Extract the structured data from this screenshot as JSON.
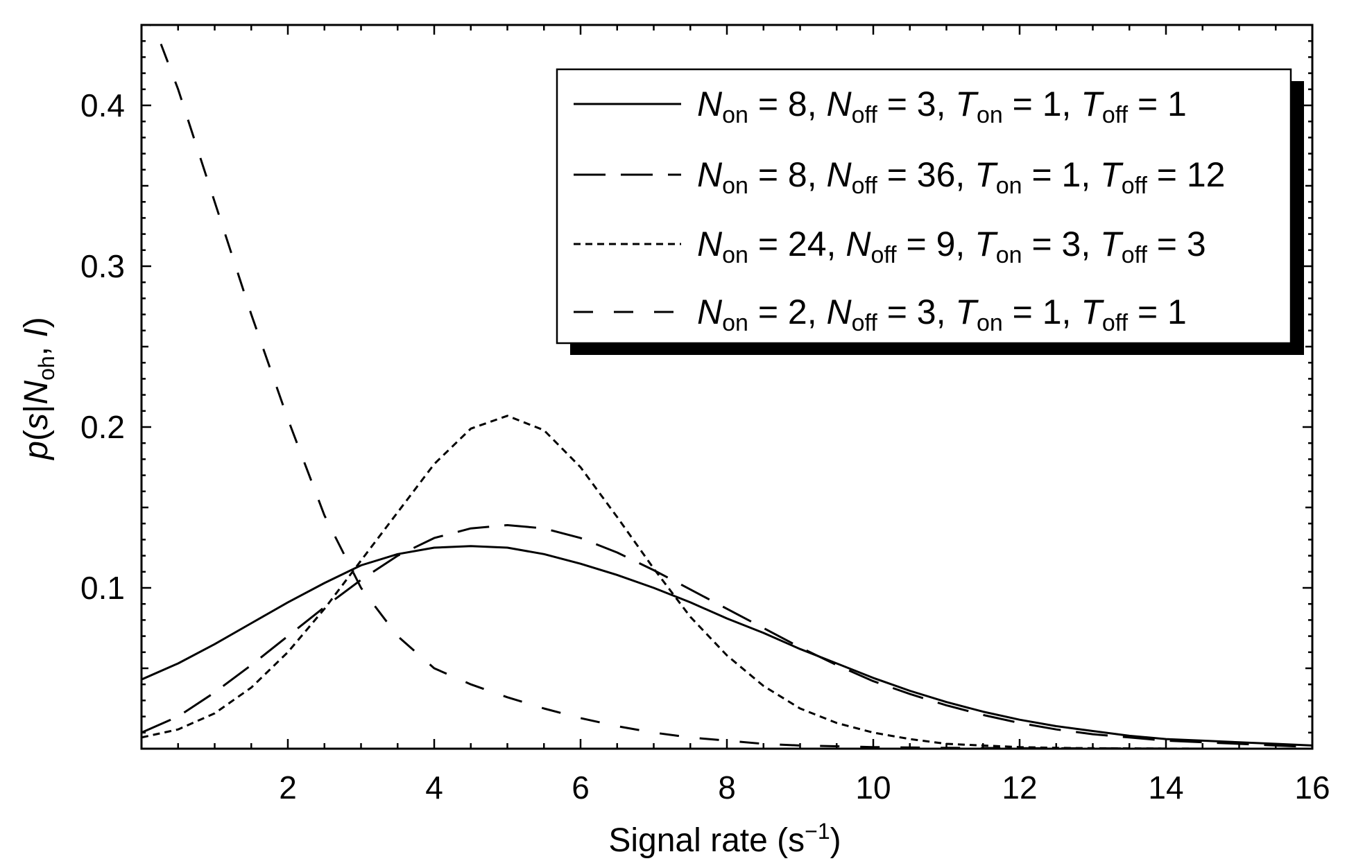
{
  "chart_data": {
    "type": "line",
    "xlabel": {
      "prefix": "Signal rate (s",
      "sup": "−1",
      "suffix": ")"
    },
    "ylabel": {
      "p": "p",
      "open": "(",
      "s": "s",
      "bar": "|",
      "N": "N",
      "sub": "oh",
      "comma": ", ",
      "I": "I",
      "close": ")"
    },
    "xlim": [
      0,
      16
    ],
    "ylim": [
      0,
      0.45
    ],
    "xticks": [
      2,
      4,
      6,
      8,
      10,
      12,
      14,
      16
    ],
    "xtick_labels": [
      "2",
      "4",
      "6",
      "8",
      "10",
      "12",
      "14",
      "16"
    ],
    "yticks": [
      0.1,
      0.2,
      0.3,
      0.4
    ],
    "ytick_labels": [
      "0.1",
      "0.2",
      "0.3",
      "0.4"
    ],
    "grid": false,
    "legend_position": "top-right",
    "series": [
      {
        "name": "N_on = 8, N_off = 3, T_on = 1, T_off = 1",
        "legend": {
          "non": "8",
          "noff": "3",
          "ton": "1",
          "toff": "1"
        },
        "style": "solid",
        "x": [
          0,
          0.5,
          1,
          1.5,
          2,
          2.5,
          3,
          3.5,
          4,
          4.5,
          5,
          5.5,
          6,
          6.5,
          7,
          7.5,
          8,
          8.5,
          9,
          9.5,
          10,
          10.5,
          11,
          11.5,
          12,
          12.5,
          13,
          13.5,
          14,
          14.5,
          15,
          15.5,
          16
        ],
        "y": [
          0.043,
          0.053,
          0.065,
          0.078,
          0.091,
          0.103,
          0.114,
          0.121,
          0.125,
          0.126,
          0.125,
          0.121,
          0.115,
          0.108,
          0.1,
          0.091,
          0.081,
          0.072,
          0.062,
          0.053,
          0.044,
          0.036,
          0.029,
          0.023,
          0.018,
          0.014,
          0.011,
          0.008,
          0.006,
          0.005,
          0.004,
          0.003,
          0.002
        ]
      },
      {
        "name": "N_on = 8, N_off = 36, T_on = 1, T_off = 12",
        "legend": {
          "non": "8",
          "noff": "36",
          "ton": "1",
          "toff": "12"
        },
        "style": "long-dash",
        "x": [
          0,
          0.5,
          1,
          1.5,
          2,
          2.5,
          3,
          3.5,
          4,
          4.5,
          5,
          5.5,
          6,
          6.5,
          7,
          7.5,
          8,
          8.5,
          9,
          9.5,
          10,
          10.5,
          11,
          11.5,
          12,
          12.5,
          13,
          13.5,
          14,
          14.5,
          15,
          15.5,
          16
        ],
        "y": [
          0.01,
          0.02,
          0.035,
          0.052,
          0.07,
          0.088,
          0.105,
          0.12,
          0.131,
          0.137,
          0.139,
          0.137,
          0.131,
          0.122,
          0.111,
          0.099,
          0.087,
          0.075,
          0.063,
          0.052,
          0.042,
          0.034,
          0.027,
          0.021,
          0.016,
          0.012,
          0.009,
          0.007,
          0.005,
          0.004,
          0.003,
          0.002,
          0.001
        ]
      },
      {
        "name": "N_on = 24, N_off = 9, T_on = 3, T_off = 3",
        "legend": {
          "non": "24",
          "noff": "9",
          "ton": "3",
          "toff": "3"
        },
        "style": "short-dash",
        "x": [
          0,
          0.5,
          1,
          1.5,
          2,
          2.5,
          3,
          3.5,
          4,
          4.5,
          5,
          5.5,
          6,
          6.5,
          7,
          7.5,
          8,
          8.5,
          9,
          9.5,
          10,
          10.5,
          11,
          11.5,
          12,
          12.5,
          13,
          13.5,
          14,
          14.5,
          15,
          15.5,
          16
        ],
        "y": [
          0.007,
          0.012,
          0.022,
          0.038,
          0.06,
          0.087,
          0.117,
          0.147,
          0.177,
          0.199,
          0.207,
          0.198,
          0.175,
          0.144,
          0.112,
          0.082,
          0.058,
          0.039,
          0.025,
          0.016,
          0.01,
          0.006,
          0.003,
          0.002,
          0.001,
          0.0005,
          0.0003,
          0.0002,
          0.0001,
          0.0,
          0.0,
          0.0,
          0.0
        ]
      },
      {
        "name": "N_on = 2, N_off = 3, T_on = 1, T_off = 1",
        "legend": {
          "non": "2",
          "noff": "3",
          "ton": "1",
          "toff": "1"
        },
        "style": "medium-dash",
        "x": [
          0,
          0.25,
          0.5,
          0.75,
          1,
          1.5,
          2,
          2.5,
          3,
          3.5,
          4,
          4.5,
          5,
          5.5,
          6,
          6.5,
          7,
          7.5,
          8,
          8.5,
          9,
          9.5,
          10,
          11,
          12,
          13,
          14,
          15,
          16
        ],
        "y": [
          0.46,
          0.44,
          0.41,
          0.375,
          0.34,
          0.27,
          0.205,
          0.145,
          0.1,
          0.07,
          0.05,
          0.04,
          0.032,
          0.025,
          0.019,
          0.014,
          0.01,
          0.007,
          0.005,
          0.003,
          0.002,
          0.0015,
          0.001,
          0.0005,
          0.0003,
          0.0002,
          0.0001,
          0.0,
          0.0
        ]
      }
    ]
  }
}
